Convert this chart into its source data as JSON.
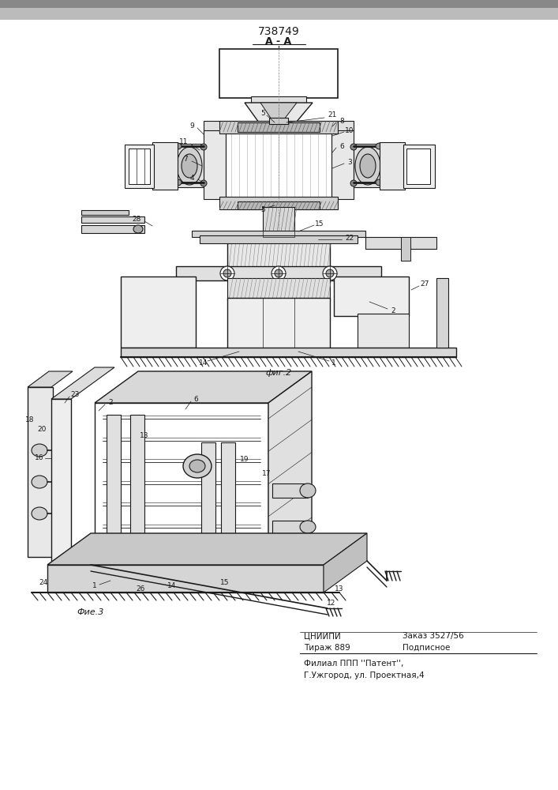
{
  "title": "738749",
  "fig2_label": "фиг.2",
  "fig3_label": "Фие.3",
  "section_label": "A - A",
  "bottom_line1_left": "ЦНИИПИ",
  "bottom_line1_mid": "Заказ 3527/56",
  "bottom_line2_left": "Тираж 889",
  "bottom_line2_mid": "Подписное",
  "bottom_line3": "Филиал ППП ''Патент'',",
  "bottom_line4": "Г.Ужгород, ул. Проектная,4",
  "bg_color": "#ffffff",
  "line_color": "#1a1a1a"
}
